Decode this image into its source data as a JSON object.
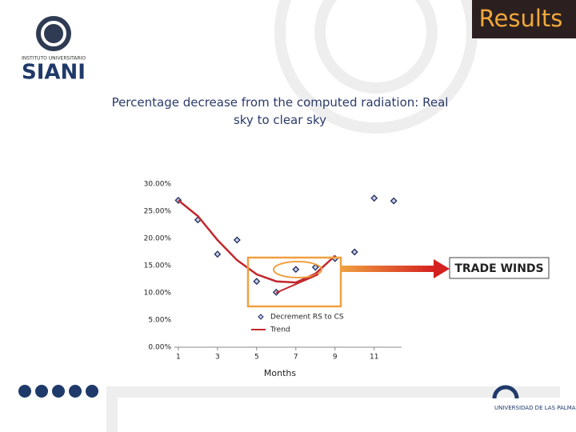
{
  "header": {
    "title": "Results"
  },
  "logos": {
    "institute_small": "INSTITUTO UNIVERSITARIO",
    "institute": "SIANI",
    "university": "UNIVERSIDAD DE LAS PALMAS DE GRAN CANARIA"
  },
  "chart_data": {
    "type": "scatter",
    "title": "Percentage decrease from the computed radiation: Real sky to clear sky",
    "x_label": "Months",
    "x": [
      1,
      2,
      3,
      4,
      5,
      6,
      7,
      8,
      9,
      10,
      11,
      12
    ],
    "series": [
      {
        "name": "Decrement RS to CS",
        "type": "scatter",
        "color": "#1f2a5c",
        "values": [
          27.0,
          23.4,
          17.1,
          19.7,
          12.1,
          10.1,
          14.3,
          14.7,
          16.3,
          17.5,
          27.4,
          26.9
        ]
      },
      {
        "name": "Trend",
        "type": "line",
        "color": "#c0282d",
        "values": [
          27.0,
          24.1,
          19.7,
          16.0,
          13.4,
          12.1,
          11.9,
          13.5,
          16.8,
          null,
          null,
          null
        ]
      }
    ],
    "xlim": [
      0.8,
      12.4
    ],
    "xticks": [
      1,
      3,
      5,
      7,
      9,
      11
    ],
    "ylim": [
      0,
      30
    ],
    "yticks": [
      {
        "value": 0,
        "label": "0.00%"
      },
      {
        "value": 5,
        "label": "5.00%"
      },
      {
        "value": 10,
        "label": "10.00%"
      },
      {
        "value": 15,
        "label": "15.00%"
      },
      {
        "value": 20,
        "label": "20.00%"
      },
      {
        "value": 25,
        "label": "25.00%"
      },
      {
        "value": 30,
        "label": "30.00%"
      }
    ],
    "annotation": "TRADE WINDS"
  }
}
